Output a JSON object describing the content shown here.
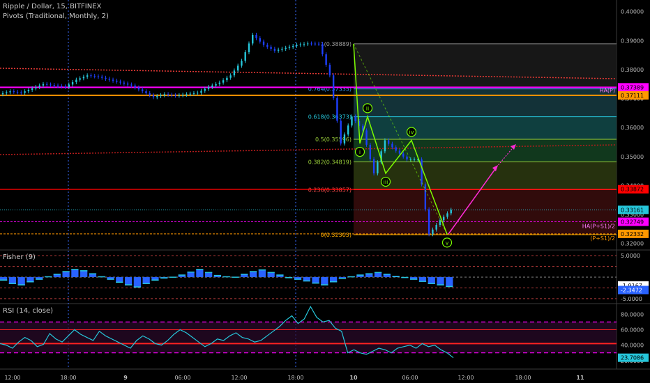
{
  "header": {
    "title": "Ripple / Dollar, 15, BITFINEX",
    "indicator": "Pivots (Traditional, Monthly, 2)",
    "fisher_title": "Fisher (9)",
    "rsi_title": "RSI (14, close)"
  },
  "colors": {
    "background": "#000000",
    "up_candle": "#26c6da",
    "down_candle": "#1e40ff",
    "pivot_magenta": "#ff00ff",
    "pivot_orange": "#ff9800",
    "pivot_red": "#ff0000",
    "wave_green": "#7cfc00",
    "projection": "#ff2bd6"
  },
  "chart_data": [
    {
      "type": "candlestick",
      "pane": "price",
      "ylim": [
        0.318,
        0.404
      ],
      "y_ticks": [
        "0.40000",
        "0.39000",
        "0.38000",
        "0.37000",
        "0.36000",
        "0.35000",
        "0.34000",
        "0.33000",
        "0.32000"
      ],
      "x_ticks": [
        "12:00",
        "18:00",
        "9",
        "06:00",
        "12:00",
        "18:00",
        "10",
        "06:00",
        "12:00",
        "18:00",
        "11"
      ],
      "fib_levels": [
        {
          "label": "1(0.38889)",
          "value": 0.38889
        },
        {
          "label": "0.764(0.37335)",
          "value": 0.37335
        },
        {
          "label": "0.618(0.36373)",
          "value": 0.36373
        },
        {
          "label": "0.5(0.35596)",
          "value": 0.35596
        },
        {
          "label": "0.382(0.34819)",
          "value": 0.34819
        },
        {
          "label": "0.236(0.33857)",
          "value": 0.33857
        },
        {
          "label": "0(0.32303)",
          "value": 0.32303
        }
      ],
      "pivot_lines": [
        {
          "label": "HA(P)",
          "value": 0.37389
        },
        {
          "label": "HA(P+S1)/2",
          "value": 0.32749
        },
        {
          "label": "(P+S1)/2",
          "value": 0.32332
        }
      ],
      "price_tags": [
        "0.37389",
        "0.37111",
        "0.33872",
        "0.33161",
        "0.32749",
        "0.32332"
      ],
      "wave_labels": [
        "i",
        "ii",
        "iii",
        "iv",
        "v"
      ],
      "waves": [
        {
          "label": "i",
          "price": 0.3545
        },
        {
          "label": "ii",
          "price": 0.3638
        },
        {
          "label": "iii",
          "price": 0.3442
        },
        {
          "label": "iv",
          "price": 0.3556
        },
        {
          "label": "v",
          "price": 0.3232
        }
      ],
      "price_path": [
        0.3715,
        0.3725,
        0.372,
        0.3735,
        0.375,
        0.3745,
        0.374,
        0.3765,
        0.378,
        0.3775,
        0.3765,
        0.3755,
        0.3745,
        0.3725,
        0.3705,
        0.3715,
        0.371,
        0.3715,
        0.372,
        0.374,
        0.3755,
        0.378,
        0.383,
        0.392,
        0.3885,
        0.3865,
        0.3875,
        0.3885,
        0.389,
        0.38889,
        0.378,
        0.3545,
        0.3638,
        0.359,
        0.3442,
        0.3556,
        0.352,
        0.349,
        0.349,
        0.3232,
        0.328,
        0.33161
      ]
    },
    {
      "type": "histogram",
      "pane": "fisher",
      "ylim": [
        -6,
        6
      ],
      "y_ticks": [
        "5.0000",
        "-5.0000"
      ],
      "tags": [
        "-1.9167",
        "-2.3472"
      ],
      "values": [
        -0.8,
        -1.6,
        -1.9,
        -1.2,
        -0.6,
        0.2,
        0.8,
        1.4,
        1.9,
        1.6,
        0.9,
        0.2,
        -0.6,
        -1.3,
        -1.9,
        -2.4,
        -1.6,
        -0.8,
        -0.3,
        0.1,
        0.6,
        1.3,
        1.9,
        1.2,
        0.5,
        0.2,
        0.1,
        0.8,
        1.4,
        1.8,
        1.2,
        0.6,
        0.0,
        -0.6,
        -1.0,
        -1.5,
        -1.9,
        -1.2,
        -0.4,
        0.2,
        0.6,
        0.9,
        1.2,
        0.8,
        0.3,
        -0.2,
        -0.6,
        -1.1,
        -1.6,
        -1.9,
        -2.3
      ]
    },
    {
      "type": "line",
      "pane": "rsi",
      "ylim": [
        18,
        92
      ],
      "y_ticks": [
        "80.0000",
        "60.0000",
        "40.0000",
        "20.0000"
      ],
      "tag": "23.7086",
      "values": [
        42,
        40,
        36,
        44,
        50,
        46,
        38,
        41,
        55,
        48,
        44,
        52,
        60,
        54,
        50,
        46,
        58,
        52,
        48,
        44,
        40,
        36,
        46,
        52,
        48,
        42,
        40,
        46,
        54,
        60,
        56,
        50,
        44,
        38,
        42,
        48,
        46,
        52,
        56,
        50,
        48,
        44,
        46,
        52,
        58,
        64,
        72,
        78,
        68,
        74,
        90,
        76,
        70,
        72,
        62,
        58,
        30,
        34,
        30,
        28,
        32,
        36,
        34,
        30,
        36,
        38,
        40,
        36,
        42,
        38,
        40,
        34,
        30,
        23.7086
      ]
    }
  ]
}
